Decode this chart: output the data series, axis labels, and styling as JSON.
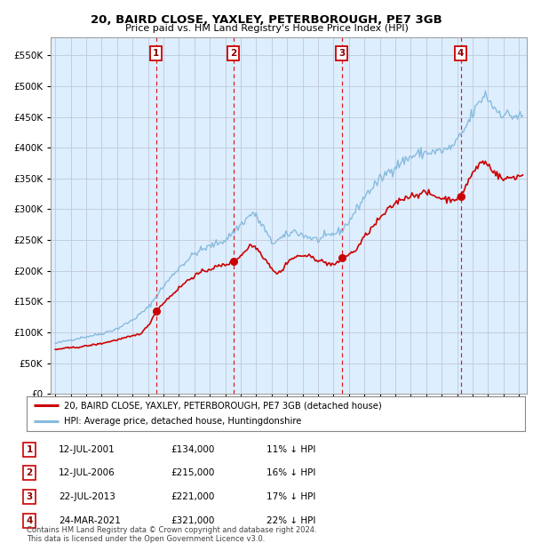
{
  "title": "20, BAIRD CLOSE, YAXLEY, PETERBOROUGH, PE7 3GB",
  "subtitle": "Price paid vs. HM Land Registry's House Price Index (HPI)",
  "ylim": [
    0,
    580000
  ],
  "yticks": [
    0,
    50000,
    100000,
    150000,
    200000,
    250000,
    300000,
    350000,
    400000,
    450000,
    500000,
    550000
  ],
  "xlim_start": 1994.7,
  "xlim_end": 2025.5,
  "background_color": "#ffffff",
  "plot_bg_color": "#ddeeff",
  "grid_color": "#c0c8d8",
  "red_line_color": "#cc0000",
  "blue_line_color": "#88bbdd",
  "sale_marker_color": "#cc0000",
  "dashed_line_color": "#dd0000",
  "sale_dates": [
    2001.53,
    2006.53,
    2013.55,
    2021.23
  ],
  "sale_prices": [
    134000,
    215000,
    221000,
    321000
  ],
  "legend_label_red": "20, BAIRD CLOSE, YAXLEY, PETERBOROUGH, PE7 3GB (detached house)",
  "legend_label_blue": "HPI: Average price, detached house, Huntingdonshire",
  "table_data": [
    [
      "1",
      "12-JUL-2001",
      "£134,000",
      "11% ↓ HPI"
    ],
    [
      "2",
      "12-JUL-2006",
      "£215,000",
      "16% ↓ HPI"
    ],
    [
      "3",
      "22-JUL-2013",
      "£221,000",
      "17% ↓ HPI"
    ],
    [
      "4",
      "24-MAR-2021",
      "£321,000",
      "22% ↓ HPI"
    ]
  ],
  "footnote": "Contains HM Land Registry data © Crown copyright and database right 2024.\nThis data is licensed under the Open Government Licence v3.0."
}
